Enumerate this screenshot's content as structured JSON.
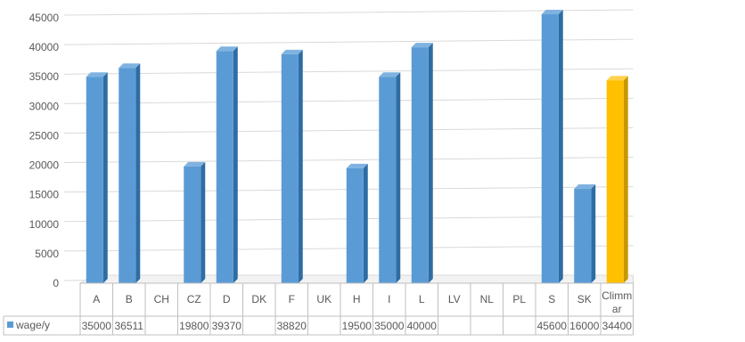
{
  "chart_data": {
    "type": "bar",
    "title": "",
    "xlabel": "",
    "ylabel": "",
    "categories": [
      "A",
      "B",
      "CH",
      "CZ",
      "D",
      "DK",
      "F",
      "UK",
      "H",
      "I",
      "L",
      "LV",
      "NL",
      "PL",
      "S",
      "SK",
      "Climmar"
    ],
    "category_labels": [
      "A",
      "B",
      "CH",
      "CZ",
      "D",
      "DK",
      "F",
      "UK",
      "H",
      "I",
      "L",
      "LV",
      "NL",
      "PL",
      "S",
      "SK",
      "Climm|ar"
    ],
    "series": [
      {
        "name": "wage/y",
        "values": [
          35000,
          36511,
          null,
          19800,
          39370,
          null,
          38820,
          null,
          19500,
          35000,
          40000,
          null,
          null,
          null,
          45600,
          16000,
          34400
        ],
        "table_labels": [
          "35000",
          "36511",
          "",
          "19800",
          "39370",
          "",
          "38820",
          "",
          "19500",
          "35000",
          "40000",
          "",
          "",
          "",
          "45600",
          "16000",
          "34400"
        ]
      }
    ],
    "highlight_category": "Climmar",
    "ylim": [
      0,
      45000
    ],
    "yticks": [
      0,
      5000,
      10000,
      15000,
      20000,
      25000,
      30000,
      35000,
      40000,
      45000
    ],
    "grid": true,
    "data_table": true,
    "colors": {
      "series": "#5b9bd5",
      "series_side": "#2e6ca4",
      "highlight": "#ffc000",
      "highlight_side": "#c99700",
      "grid": "#d9d9d9",
      "axis_text": "#595959"
    }
  }
}
